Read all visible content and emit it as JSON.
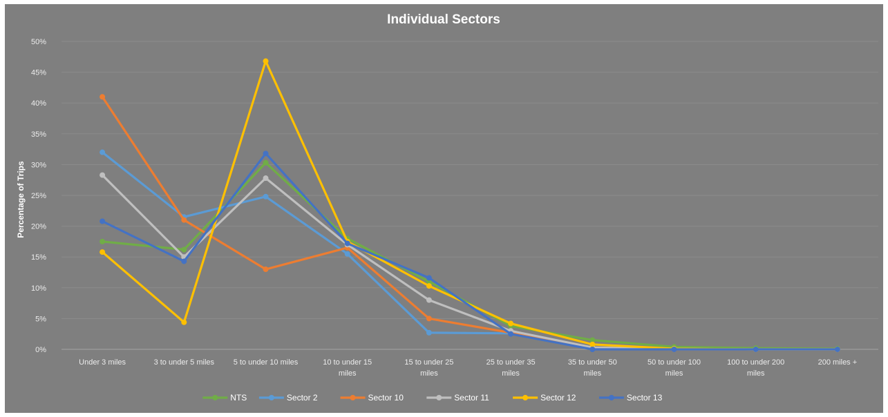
{
  "chart_data": {
    "type": "line",
    "title": "Individual Sectors",
    "xlabel": "",
    "ylabel": "Percentage of Trips",
    "ylim": [
      0,
      50
    ],
    "y_ticks": [
      "0%",
      "5%",
      "10%",
      "15%",
      "20%",
      "25%",
      "30%",
      "35%",
      "40%",
      "45%",
      "50%"
    ],
    "categories": [
      [
        "Under 3 miles"
      ],
      [
        "3 to under 5 miles"
      ],
      [
        "5 to under 10 miles"
      ],
      [
        "10 to under 15",
        "miles"
      ],
      [
        "15 to under 25",
        "miles"
      ],
      [
        "25 to under 35",
        "miles"
      ],
      [
        "35 to under 50",
        "miles"
      ],
      [
        "50 to under 100",
        "miles"
      ],
      [
        "100 to under 200",
        "miles"
      ],
      [
        "200 miles +"
      ]
    ],
    "grid": true,
    "legend_position": "bottom",
    "series": [
      {
        "name": "NTS",
        "color": "#70ad47",
        "values": [
          17.5,
          16.2,
          30.3,
          18.0,
          11.0,
          3.8,
          1.5,
          0.4,
          0.2,
          0.1
        ]
      },
      {
        "name": "Sector 2",
        "color": "#5b9bd5",
        "values": [
          32.0,
          21.5,
          24.8,
          15.5,
          2.7,
          2.6,
          0.1,
          0.0,
          0.0,
          0.0
        ]
      },
      {
        "name": "Sector 10",
        "color": "#ed7d31",
        "values": [
          41.0,
          21.0,
          13.0,
          16.5,
          5.0,
          2.7,
          0.1,
          0.0,
          0.0,
          0.0
        ]
      },
      {
        "name": "Sector 11",
        "color": "#bfbfbf",
        "values": [
          28.3,
          15.0,
          27.8,
          17.0,
          8.0,
          3.0,
          0.3,
          0.1,
          0.0,
          0.0
        ]
      },
      {
        "name": "Sector 12",
        "color": "#ffc000",
        "values": [
          15.8,
          4.4,
          46.8,
          17.5,
          10.3,
          4.2,
          0.8,
          0.1,
          0.0,
          0.0
        ]
      },
      {
        "name": "Sector 13",
        "color": "#4472c4",
        "values": [
          20.8,
          14.3,
          31.8,
          17.2,
          11.6,
          2.5,
          0.0,
          0.0,
          0.0,
          0.0
        ]
      }
    ]
  }
}
